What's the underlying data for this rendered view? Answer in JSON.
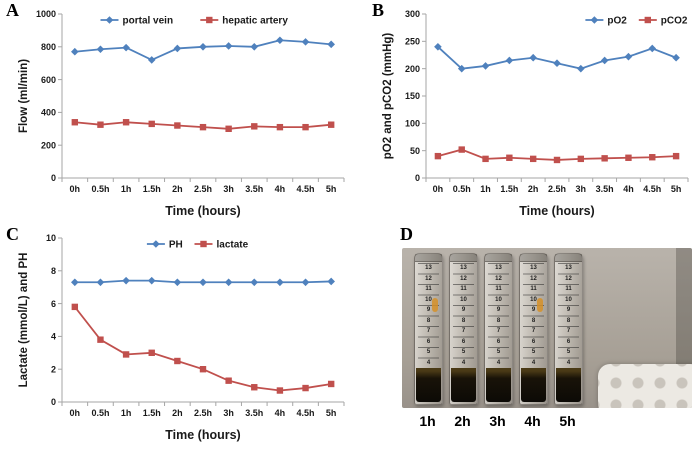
{
  "figure": {
    "panel_labels": {
      "a": "A",
      "b": "B",
      "c": "C",
      "d": "D"
    }
  },
  "panel_d": {
    "tube_labels": [
      "1h",
      "2h",
      "3h",
      "4h",
      "5h"
    ],
    "graduations": [
      "13",
      "12",
      "11",
      "10",
      "9",
      "8",
      "7",
      "6",
      "5",
      "4"
    ]
  },
  "colors": {
    "series_blue": "#4f81bd",
    "series_red": "#c0504d"
  },
  "chart_data": [
    {
      "type": "line",
      "panel": "A",
      "title": "",
      "categories": [
        "0h",
        "0.5h",
        "1h",
        "1.5h",
        "2h",
        "2.5h",
        "3h",
        "3.5h",
        "4h",
        "4.5h",
        "5h"
      ],
      "series": [
        {
          "name": "portal vein",
          "color": "#4f81bd",
          "marker": "diamond",
          "values": [
            770,
            785,
            795,
            720,
            790,
            800,
            805,
            800,
            840,
            830,
            815
          ]
        },
        {
          "name": "hepatic artery",
          "color": "#c0504d",
          "marker": "square",
          "values": [
            340,
            325,
            340,
            330,
            320,
            310,
            300,
            315,
            310,
            310,
            325
          ]
        }
      ],
      "xlabel": "Time (hours)",
      "ylabel": "Flow (ml/min)",
      "ylim": [
        0,
        1000
      ],
      "ytick": 200,
      "grid": false,
      "legend": "center"
    },
    {
      "type": "line",
      "panel": "B",
      "title": "",
      "categories": [
        "0h",
        "0.5h",
        "1h",
        "1.5h",
        "2h",
        "2.5h",
        "3h",
        "3.5h",
        "4h",
        "4.5h",
        "5h"
      ],
      "series": [
        {
          "name": "pO2",
          "color": "#4f81bd",
          "marker": "diamond",
          "values": [
            240,
            200,
            205,
            215,
            220,
            210,
            200,
            215,
            222,
            237,
            220
          ]
        },
        {
          "name": "pCO2",
          "color": "#c0504d",
          "marker": "square",
          "values": [
            40,
            52,
            35,
            37,
            35,
            33,
            35,
            36,
            37,
            38,
            40
          ]
        }
      ],
      "xlabel": "Time (hours)",
      "ylabel": "pO2 and pCO2 (mmHg)",
      "ylim": [
        0,
        300
      ],
      "ytick": 50,
      "grid": false,
      "legend": "right"
    },
    {
      "type": "line",
      "panel": "C",
      "title": "",
      "categories": [
        "0h",
        "0.5h",
        "1h",
        "1.5h",
        "2h",
        "2.5h",
        "3h",
        "3.5h",
        "4h",
        "4.5h",
        "5h"
      ],
      "series": [
        {
          "name": "PH",
          "color": "#4f81bd",
          "marker": "diamond",
          "values": [
            7.3,
            7.3,
            7.4,
            7.4,
            7.3,
            7.3,
            7.3,
            7.3,
            7.3,
            7.3,
            7.35
          ]
        },
        {
          "name": "lactate",
          "color": "#c0504d",
          "marker": "square",
          "values": [
            5.8,
            3.8,
            2.9,
            3.0,
            2.5,
            2.0,
            1.3,
            0.9,
            0.7,
            0.85,
            1.1
          ]
        }
      ],
      "xlabel": "Time (hours)",
      "ylabel": "Lactate (mmol/L) and PH",
      "ylim": [
        0,
        10
      ],
      "ytick": 2,
      "grid": false,
      "legend": "center"
    }
  ]
}
